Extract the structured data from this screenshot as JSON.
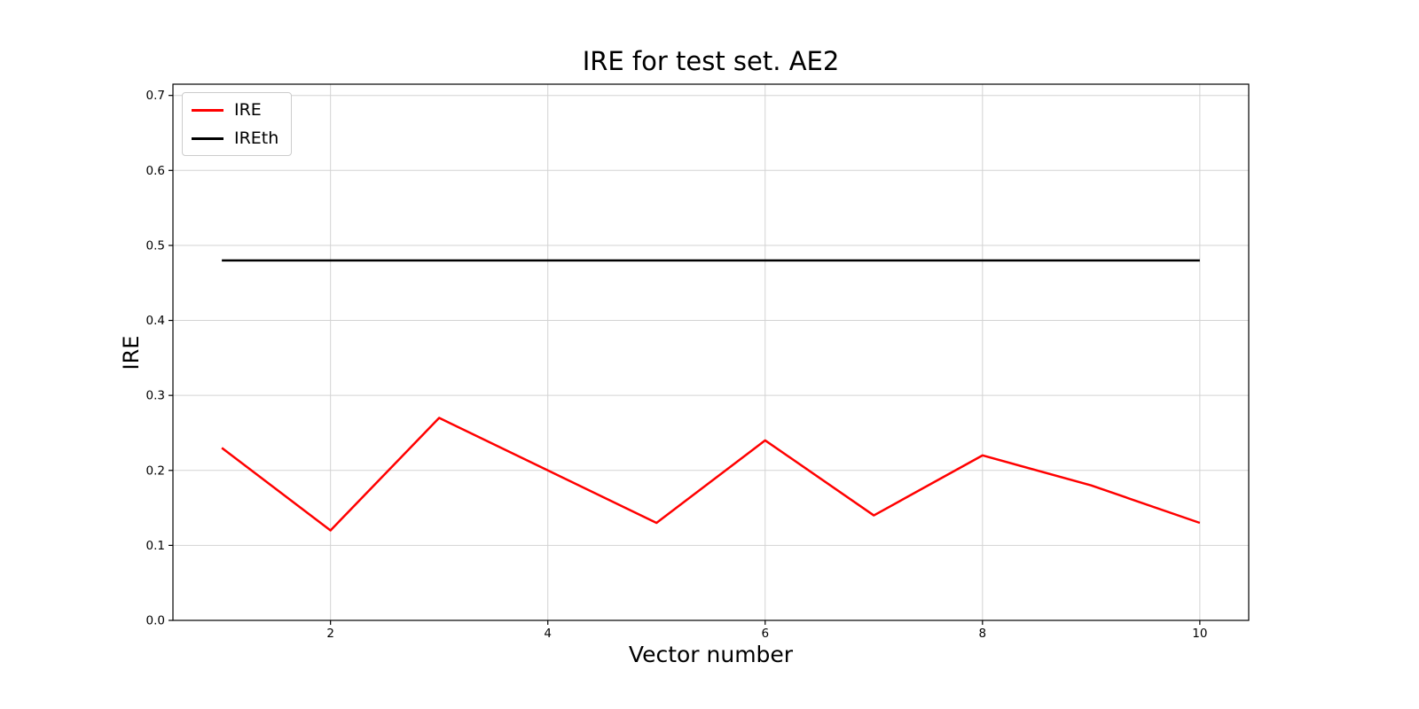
{
  "chart_data": {
    "type": "line",
    "title": "IRE for test set. AE2",
    "xlabel": "Vector number",
    "ylabel": "IRE",
    "xlim": [
      0.55,
      10.45
    ],
    "ylim": [
      0.0,
      0.715
    ],
    "xticks": [
      2,
      4,
      6,
      8,
      10
    ],
    "xtick_labels": [
      "2",
      "4",
      "6",
      "8",
      "10"
    ],
    "yticks": [
      0.0,
      0.1,
      0.2,
      0.3,
      0.4,
      0.5,
      0.6,
      0.7
    ],
    "ytick_labels": [
      "0.0",
      "0.1",
      "0.2",
      "0.3",
      "0.4",
      "0.5",
      "0.6",
      "0.7"
    ],
    "grid": true,
    "grid_color": "#d3d3d3",
    "frame_color": "#000000",
    "legend_position": "upper left",
    "series": [
      {
        "name": "IRE",
        "color": "#ff0000",
        "linewidth": 2.5,
        "x": [
          1,
          2,
          3,
          4,
          5,
          6,
          7,
          8,
          9,
          10
        ],
        "y": [
          0.23,
          0.12,
          0.27,
          0.2,
          0.13,
          0.24,
          0.14,
          0.22,
          0.18,
          0.13
        ]
      },
      {
        "name": "IREth",
        "color": "#000000",
        "linewidth": 2.5,
        "x": [
          1,
          10
        ],
        "y": [
          0.48,
          0.48
        ]
      }
    ]
  }
}
